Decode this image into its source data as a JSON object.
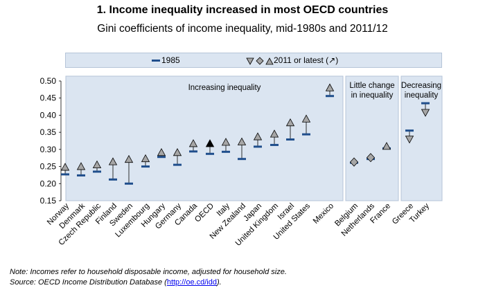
{
  "header": {
    "title": "1. Income inequality increased in most OECD countries",
    "subtitle": "Gini coefficients of income inequality, mid-1980s and 2011/12"
  },
  "legend": {
    "series_1985": "1985",
    "series_2011": "2011 or latest (↗)"
  },
  "panels": [
    {
      "label_lines": [
        "Increasing inequality"
      ]
    },
    {
      "label_lines": [
        "Little change",
        "in inequality"
      ]
    },
    {
      "label_lines": [
        "Decreasing",
        "inequality"
      ]
    }
  ],
  "colors": {
    "panel_bg": "#dbe5f1",
    "marker_1985": "#1f4e8c",
    "marker_2011": "#a6a6a6",
    "marker_oecd": "#000000"
  },
  "notes": {
    "note": "Note: Incomes refer to household disposable income, adjusted for household size.",
    "source_prefix": "Source: OECD Income Distribution Database (",
    "source_link": "http://oe.cd/idd",
    "source_suffix": ")."
  },
  "chart_data": {
    "type": "scatter",
    "ylim": [
      0.15,
      0.5
    ],
    "yticks": [
      "0.50",
      "0.45",
      "0.40",
      "0.35",
      "0.30",
      "0.25",
      "0.20",
      "0.15"
    ],
    "categories": [
      "Norway",
      "Denmark",
      "Czech Republic",
      "Finland",
      "Sweden",
      "Luxembourg",
      "Hungary",
      "Germany",
      "Canada",
      "OECD",
      "Italy",
      "New Zealand",
      "Japan",
      "United Kingdom",
      "Israel",
      "United States",
      "Mexico",
      "Belgium",
      "Netherlands",
      "France",
      "Greece",
      "Turkey"
    ],
    "group": [
      0,
      0,
      0,
      0,
      0,
      0,
      0,
      0,
      0,
      0,
      0,
      0,
      0,
      0,
      0,
      0,
      0,
      1,
      1,
      1,
      2,
      2
    ],
    "series": [
      {
        "name": "1985",
        "values": [
          0.227,
          0.224,
          0.235,
          0.212,
          0.2,
          0.25,
          0.278,
          0.255,
          0.294,
          0.287,
          0.293,
          0.272,
          0.308,
          0.313,
          0.329,
          0.344,
          0.456,
          0.261,
          0.272,
          0.303,
          0.355,
          0.435
        ]
      },
      {
        "name": "2011 or latest",
        "values": [
          0.247,
          0.249,
          0.254,
          0.263,
          0.27,
          0.272,
          0.29,
          0.29,
          0.316,
          0.316,
          0.32,
          0.321,
          0.336,
          0.344,
          0.377,
          0.388,
          0.479,
          0.263,
          0.276,
          0.308,
          0.331,
          0.409
        ]
      }
    ]
  }
}
